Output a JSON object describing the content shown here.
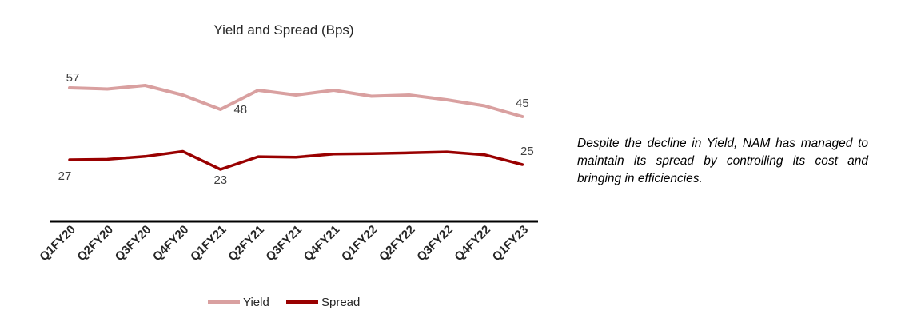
{
  "chart_data": {
    "type": "line",
    "title": "Yield and Spread (Bps)",
    "xlabel": "",
    "ylabel": "",
    "ylim": [
      10,
      65
    ],
    "grid": false,
    "legend_position": "bottom",
    "categories": [
      "Q1FY20",
      "Q2FY20",
      "Q3FY20",
      "Q4FY20",
      "Q1FY21",
      "Q2FY21",
      "Q3FY21",
      "Q4FY21",
      "Q1FY22",
      "Q2FY22",
      "Q3FY22",
      "Q4FY22",
      "Q1FY23"
    ],
    "series": [
      {
        "name": "Yield",
        "color": "#d9a0a0",
        "values": [
          57,
          56.5,
          58,
          54,
          48,
          56,
          54,
          56,
          53.5,
          54,
          52,
          49.5,
          45
        ],
        "labeled_points": [
          {
            "index": 0,
            "text": "57"
          },
          {
            "index": 4,
            "text": "48"
          },
          {
            "index": 12,
            "text": "45"
          }
        ]
      },
      {
        "name": "Spread",
        "color": "#990000",
        "values": [
          27,
          27.2,
          28.4,
          30.5,
          23,
          28.3,
          28.1,
          29.4,
          29.6,
          29.9,
          30.3,
          29.1,
          25
        ],
        "labeled_points": [
          {
            "index": 0,
            "text": "27"
          },
          {
            "index": 4,
            "text": "23"
          },
          {
            "index": 12,
            "text": "25"
          }
        ]
      }
    ]
  },
  "commentary": "Despite the decline in Yield, NAM has managed to maintain its spread by controlling its cost and bringing in efficiencies."
}
